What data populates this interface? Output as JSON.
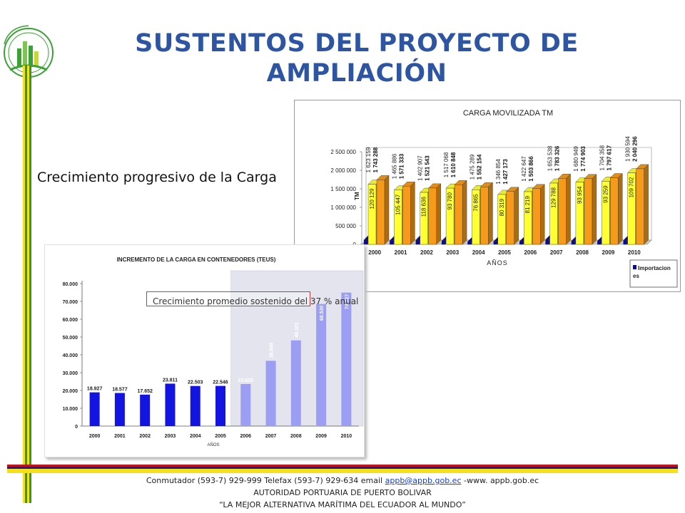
{
  "slide": {
    "title_line1": "SUSTENTOS DEL PROYECTO DE",
    "title_line2": "AMPLIACIÓN",
    "subtitle": "Crecimiento progresivo de la Carga",
    "callout": "Crecimiento promedio sostenido del 37 % anual"
  },
  "footer": {
    "contact_prefix": "Conmutador (593-7) 929-999  Telefax (593-7) 929-634 email ",
    "email": "appb@appb.gob.ec",
    "contact_suffix": " -www. appb.gob.ec",
    "org": "AUTORIDAD PORTUARIA DE PUERTO BOLIVAR",
    "motto": "“LA MEJOR ALTERNATIVA MARÍTIMA DEL ECUADOR AL MUNDO”"
  },
  "colors": {
    "title": "#2e55a2",
    "stripe_red": "#c0141c",
    "stripe_blue": "#1c1c9a",
    "stripe_yellow": "#f6e016",
    "stripe_green": "#2e9a2a",
    "logo_green": "#3aa135",
    "series_blue": "#0a0a9c",
    "series_yellow": "#ffff33",
    "series_orange": "#f59a1a",
    "teus_solid": "#1414e0",
    "teus_light": "#9b9ef2"
  },
  "chart_data": [
    {
      "type": "bar",
      "title": "CARGA MOVILIZADA TM",
      "xlabel": "AÑOS",
      "ylabel": "TM",
      "categories": [
        "2000",
        "2001",
        "2002",
        "2003",
        "2004",
        "2005",
        "2006",
        "2007",
        "2008",
        "2009",
        "2010"
      ],
      "yticks": [
        "0",
        "500 000",
        "1 000 000",
        "1 500 000",
        "2 000 000",
        "2 500 000"
      ],
      "ylim": [
        0,
        2500000
      ],
      "legend_position": "bottom-right",
      "series": [
        {
          "name": "Importaciones",
          "color": "#0a0a9c",
          "values": [
            120129,
            105447,
            118636,
            93780,
            76865,
            80319,
            81219,
            129788,
            93954,
            93259,
            109702
          ],
          "labels": [
            "120 129",
            "105 447",
            "118 636",
            "93 780",
            "76 865",
            "80 319",
            "81 219",
            "129 788",
            "93 954",
            "93 259",
            "109 702"
          ]
        },
        {
          "color": "#ffff33",
          "values": [
            1623159,
            1465886,
            1402907,
            1517068,
            1475289,
            1346854,
            1422647,
            1653538,
            1680949,
            1704358,
            1930594
          ],
          "labels": [
            "1 623 159",
            "1 465 886",
            "1 402 907",
            "1 517 068",
            "1 475 289",
            "1 346 854",
            "1 422 647",
            "1 653 538",
            "1 680 949",
            "1 704 358",
            "1 930 594"
          ]
        },
        {
          "color": "#f59a1a",
          "values": [
            1743288,
            1571333,
            1521543,
            1610848,
            1552154,
            1427173,
            1503866,
            1783326,
            1774903,
            1797617,
            2040296
          ],
          "labels": [
            "1 743 288",
            "1 571 333",
            "1 521 543",
            "1 610 848",
            "1 552 154",
            "1 427 173",
            "1 503 866",
            "1 783 326",
            "1 774 903",
            "1 797 617",
            "2 040 296"
          ]
        }
      ],
      "legend": [
        {
          "label": "Importacion es",
          "color": "#0a0a9c"
        }
      ]
    },
    {
      "type": "bar",
      "title": "INCREMENTO DE LA CARGA EN CONTENEDORES (TEUS)",
      "xlabel": "AÑOS",
      "ylabel": "",
      "categories": [
        "2000",
        "2001",
        "2002",
        "2003",
        "2004",
        "2005",
        "2006",
        "2007",
        "2008",
        "2009",
        "2010"
      ],
      "yticks": [
        "0",
        "10.000",
        "20.000",
        "30.000",
        "40.000",
        "50.000",
        "60.000",
        "70.000",
        "80.000"
      ],
      "ylim": [
        0,
        80000
      ],
      "values": [
        18927,
        18577,
        17652,
        23811,
        22503,
        22546,
        23625,
        36640,
        48101,
        68530,
        74927
      ],
      "labels": [
        "18.927",
        "18.577",
        "17.652",
        "23.811",
        "22.503",
        "22.546",
        "23.625",
        "36.640",
        "48.101",
        "68.530",
        "74.927"
      ],
      "projected_from": "2006"
    }
  ]
}
